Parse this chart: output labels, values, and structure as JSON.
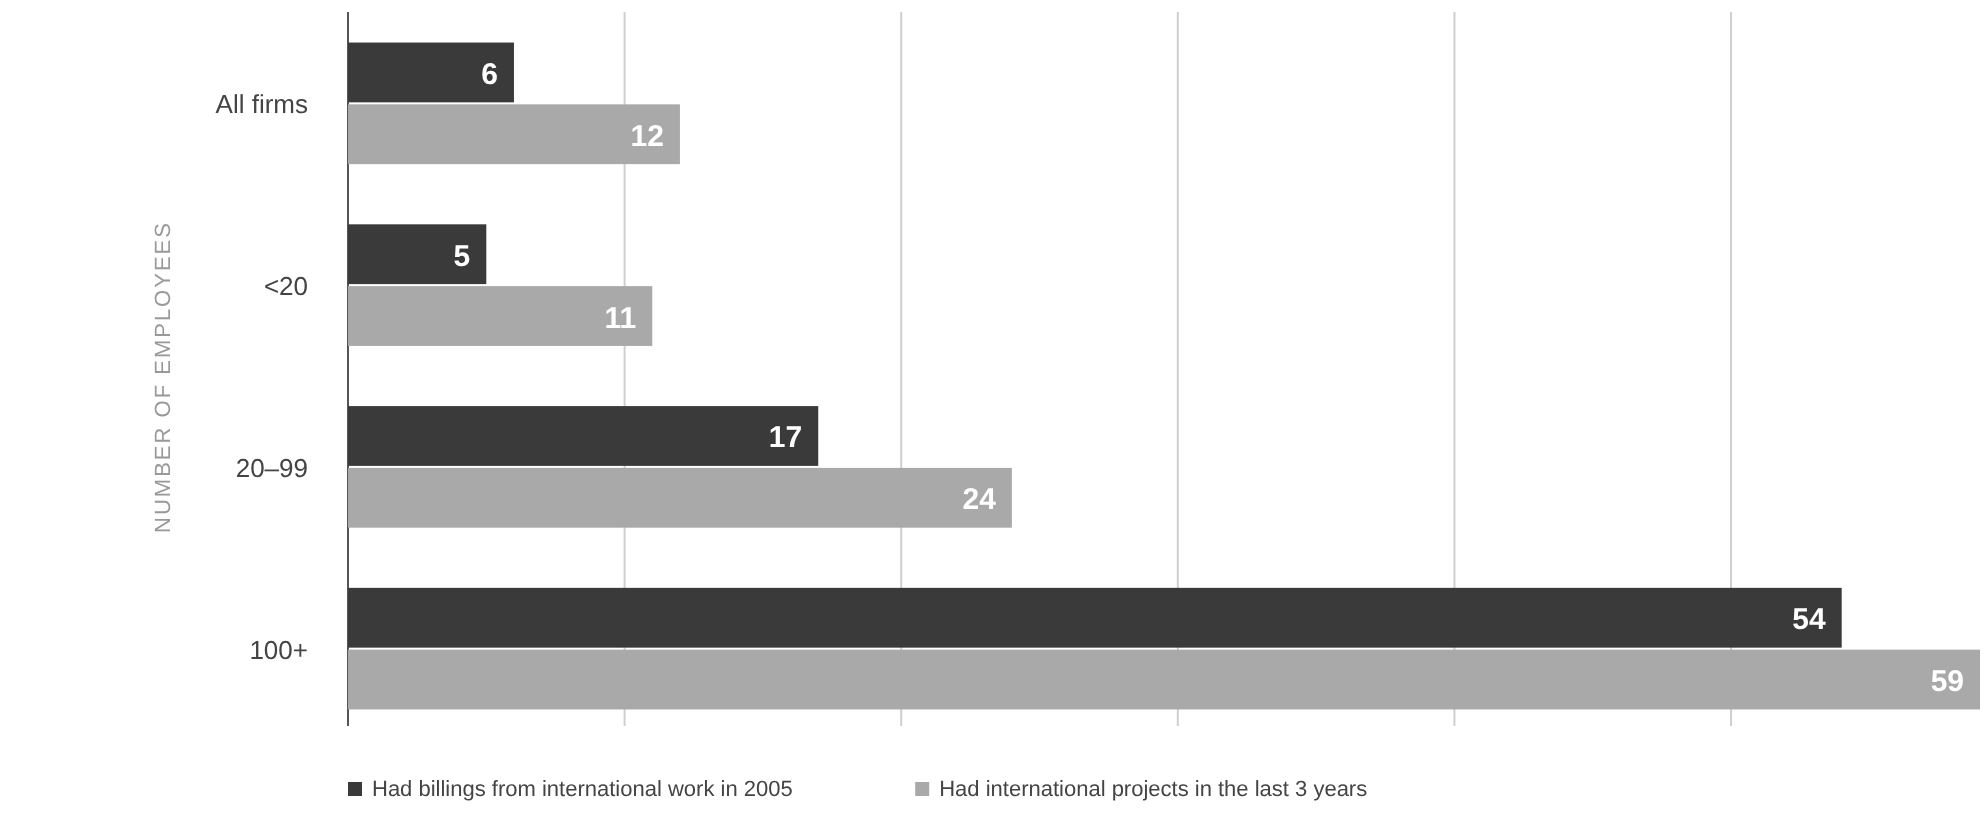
{
  "chart_data": {
    "type": "bar",
    "orientation": "horizontal",
    "ylabel": "NUMBER OF EMPLOYEES",
    "categories": [
      "All firms",
      "<20",
      "20–99",
      "100+"
    ],
    "series": [
      {
        "name": "Had billings from international work in 2005",
        "color": "#3a3a3a",
        "values": [
          6,
          5,
          17,
          54
        ]
      },
      {
        "name": "Had international projects in the last 3 years",
        "color": "#a9a9a9",
        "values": [
          12,
          11,
          24,
          59
        ]
      }
    ],
    "xlim": [
      0,
      59
    ],
    "xticks": [
      {
        "value": 0,
        "label": null
      },
      {
        "value": 10,
        "label": null
      },
      {
        "value": 20,
        "label": null
      },
      {
        "value": 30,
        "label": null
      },
      {
        "value": 40,
        "label": null
      },
      {
        "value": 50,
        "label": null
      }
    ],
    "grid": "x",
    "data_labels": true,
    "legend": "bottom",
    "tick_labels": "y"
  }
}
